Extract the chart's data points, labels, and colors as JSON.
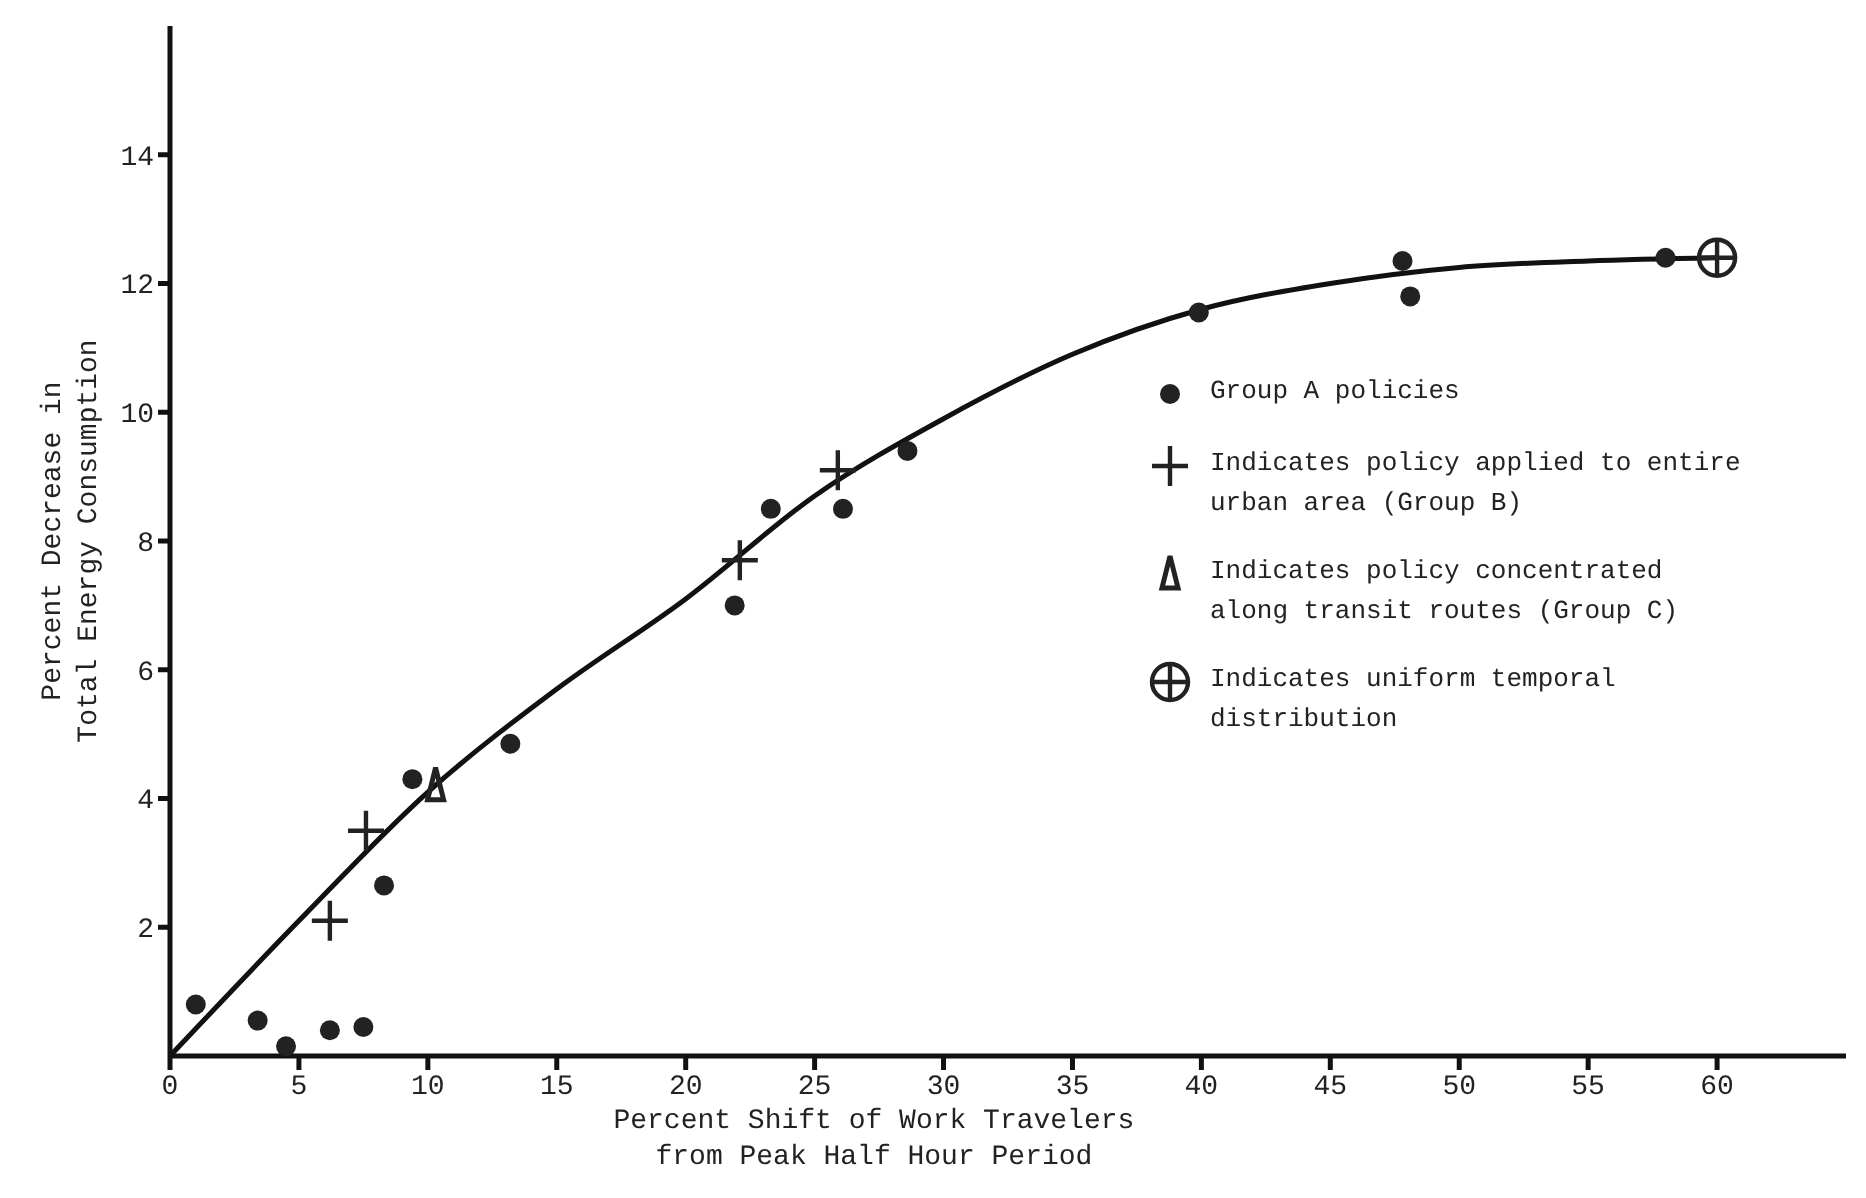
{
  "chart_data": {
    "type": "scatter",
    "xlabel": "Percent Shift of Work Travelers from Peak Half Hour Period",
    "ylabel": "Percent Decrease in Total Energy Consumption",
    "xlim": [
      0,
      65
    ],
    "xticks": [
      0,
      5,
      10,
      15,
      20,
      25,
      30,
      35,
      40,
      45,
      50,
      55,
      60
    ],
    "ylim": [
      0,
      16
    ],
    "yticks": [
      2,
      4,
      6,
      8,
      10,
      12,
      14
    ],
    "grid": false,
    "legend": "right",
    "series": [
      {
        "name": "Group A policies",
        "color": "#222222",
        "marker": "circle",
        "x": [
          1.0,
          3.4,
          4.5,
          6.2,
          7.5,
          8.3,
          9.4,
          13.2,
          21.9,
          23.3,
          26.1,
          28.6,
          39.9,
          47.8,
          48.1,
          58.0
        ],
        "values": [
          0.8,
          0.55,
          0.15,
          0.4,
          0.45,
          2.65,
          4.3,
          4.85,
          7.0,
          8.5,
          8.5,
          9.4,
          11.55,
          12.35,
          11.8,
          12.4
        ]
      },
      {
        "name": "Indicates policy applied to entire urban area (Group B)",
        "color": "#222222",
        "marker": "cross",
        "x": [
          6.2,
          7.6,
          22.1,
          25.9
        ],
        "values": [
          2.1,
          3.5,
          7.7,
          9.1
        ]
      },
      {
        "name": "Indicates policy concentrated along transit routes (Group C)",
        "color": "#222222",
        "marker": "triangle",
        "x": [
          10.3
        ],
        "values": [
          4.2
        ]
      },
      {
        "name": "Indicates uniform temporal distribution",
        "color": "#222222",
        "marker": "circle-open",
        "x": [
          60
        ],
        "values": [
          12.4
        ]
      },
      {
        "type": "line",
        "color": "#111111",
        "marker": "none",
        "line_style": "solid",
        "x": [
          0,
          5,
          10,
          15,
          20,
          25,
          30,
          35,
          40,
          45,
          50,
          55,
          60
        ],
        "values": [
          0,
          2.1,
          4.1,
          5.7,
          7.1,
          8.7,
          9.9,
          10.9,
          11.6,
          12.0,
          12.25,
          12.35,
          12.4
        ]
      }
    ]
  }
}
